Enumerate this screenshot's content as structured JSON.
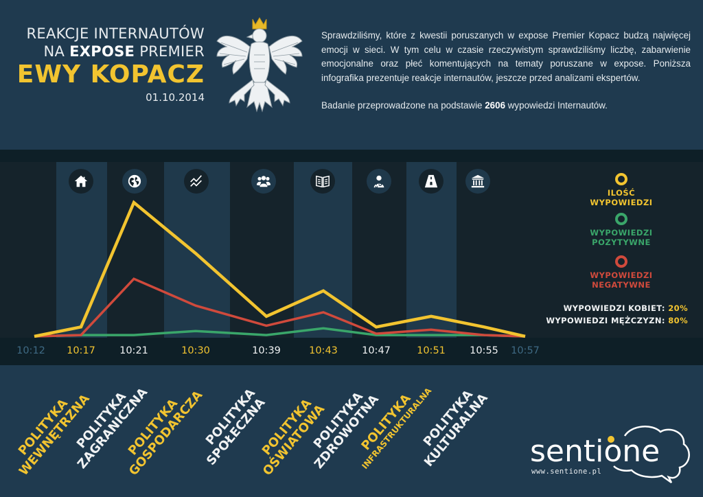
{
  "header": {
    "title_line1": "REAKCJE INTERNAUTÓW",
    "title_line2_prefix": "NA ",
    "title_line2_bold": "EXPOSE",
    "title_line2_suffix": " PREMIER",
    "title_line3": "EWY KOPACZ",
    "date": "01.10.2014",
    "emblem": "polish-eagle-emblem"
  },
  "intro": {
    "paragraph1": "Sprawdziliśmy, które z kwestii poruszanych w expose Premier Kopacz budzą najwięcej emocji w sieci. W tym celu w czasie rzeczywistym sprawdziliśmy liczbę, zabarwienie emocjonalne oraz płeć komentujących na tematy poruszane w expose. Poniższa infografika prezentuje reakcje internautów, jeszcze przed analizami ekspertów.",
    "paragraph2_prefix": "Badanie przeprowadzone na podstawie ",
    "paragraph2_bold": "2606",
    "paragraph2_suffix": " wypowiedzi Internautów."
  },
  "colors": {
    "background": "#1f3a4f",
    "chart_bg": "#15232b",
    "band": "#1f394b",
    "yellow": "#f2c430",
    "green": "#3aa66a",
    "red": "#d04a3c",
    "muted_blue": "#3f6a84",
    "white": "#f0f2f3"
  },
  "topic_icons": [
    {
      "name": "home-icon",
      "label": "Polityka wewnętrzna"
    },
    {
      "name": "globe-icon",
      "label": "Polityka zagraniczna"
    },
    {
      "name": "trend-chart-icon",
      "label": "Polityka gospodarcza"
    },
    {
      "name": "people-group-icon",
      "label": "Polityka społeczna"
    },
    {
      "name": "open-book-icon",
      "label": "Polityka oświatowa"
    },
    {
      "name": "doctor-icon",
      "label": "Polityka zdrowotna"
    },
    {
      "name": "road-icon",
      "label": "Polityka infrastrukturalna"
    },
    {
      "name": "bank-building-icon",
      "label": "Polityka kulturalna"
    }
  ],
  "legend": {
    "items": [
      {
        "line1": "ILOŚĆ",
        "line2": "WYPOWIEDZI",
        "color": "#f2c430"
      },
      {
        "line1": "WYPOWIEDZI",
        "line2": "POZYTYWNE",
        "color": "#3aa66a"
      },
      {
        "line1": "WYPOWIEDZI",
        "line2": "NEGATYWNE",
        "color": "#d04a3c"
      }
    ]
  },
  "gender": {
    "women_label": "WYPOWIEDZI KOBIET: ",
    "women_pct": "20%",
    "men_label": "WYPOWIEDZI MĘŻCZYZN: ",
    "men_pct": "80%"
  },
  "categories": [
    {
      "line1": "POLITYKA",
      "line2": "WEWNĘTRZNA",
      "color": "#f2c430"
    },
    {
      "line1": "POLITYKA",
      "line2": "ZAGRANICZNA",
      "color": "#f0f2f3"
    },
    {
      "line1": "POLITYKA",
      "line2": "GOSPODARCZA",
      "color": "#f2c430"
    },
    {
      "line1": "POLITYKA",
      "line2": "SPOŁECZNA",
      "color": "#f0f2f3"
    },
    {
      "line1": "POLITYKA",
      "line2": "OŚWIATOWA",
      "color": "#f2c430"
    },
    {
      "line1": "POLITYKA",
      "line2": "ZDROWOTNA",
      "color": "#f0f2f3"
    },
    {
      "line1": "POLITYKA",
      "line2": "INFRASTRUKTURALNA",
      "color": "#f2c430"
    },
    {
      "line1": "POLITYKA",
      "line2": "KULTURALNA",
      "color": "#f0f2f3"
    }
  ],
  "logo": {
    "brand": "sentione",
    "url": "www.sentione.pl"
  },
  "chart_data": {
    "type": "line",
    "title": "Reakcje internautów na expose premier Ewy Kopacz",
    "xlabel": "",
    "ylabel": "",
    "y_units": "relative (peak = 100)",
    "ylim": [
      0,
      100
    ],
    "grid": false,
    "legend_position": "right",
    "x": [
      "10:12",
      "10:17",
      "10:21",
      "10:30",
      "10:39",
      "10:43",
      "10:47",
      "10:51",
      "10:55",
      "10:57"
    ],
    "x_label_colors": [
      "#3f6a84",
      "#f2c430",
      "#f0f2f3",
      "#f2c430",
      "#f0f2f3",
      "#f2c430",
      "#f0f2f3",
      "#f2c430",
      "#f0f2f3",
      "#3f6a84"
    ],
    "series": [
      {
        "name": "Ilość wypowiedzi",
        "color": "#f2c430",
        "values": [
          0,
          7,
          100,
          62,
          15,
          34,
          7,
          15,
          7,
          0
        ]
      },
      {
        "name": "Wypowiedzi negatywne",
        "color": "#d04a3c",
        "values": [
          0,
          1,
          43,
          23,
          8,
          18,
          2,
          5,
          1,
          0
        ]
      },
      {
        "name": "Wypowiedzi pozytywne",
        "color": "#3aa66a",
        "values": [
          0,
          1,
          1,
          4,
          1,
          6,
          1,
          1,
          1,
          0
        ]
      }
    ]
  }
}
